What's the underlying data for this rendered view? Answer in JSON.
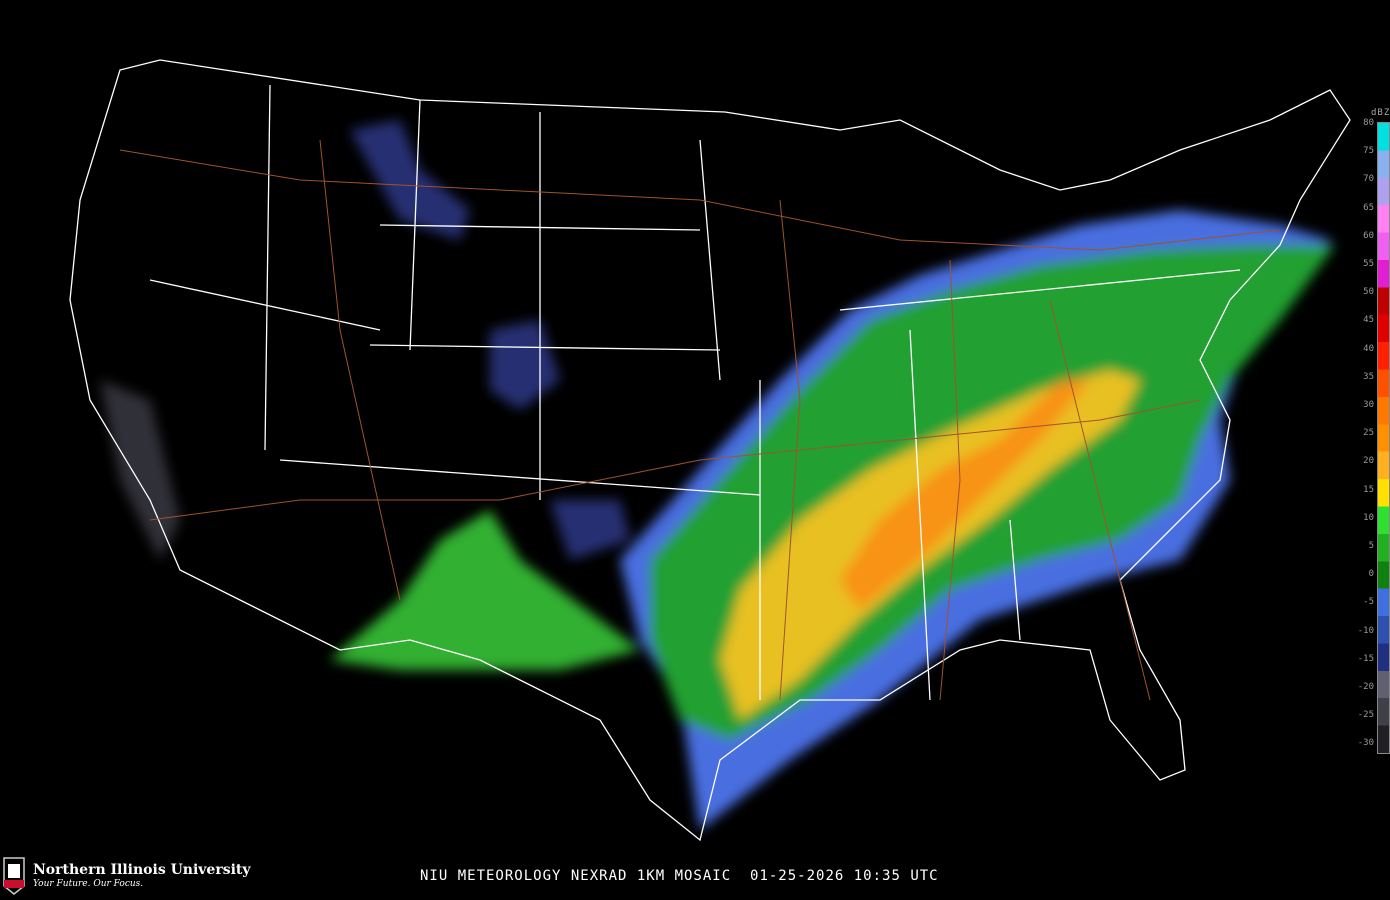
{
  "caption": {
    "source": "NIU METEOROLOGY NEXRAD 1KM MOSAIC",
    "date": "01-25-2026",
    "time": "10:35 UTC"
  },
  "logo": {
    "name": "Northern Illinois University",
    "tagline": "Your Future. Our Focus.",
    "mark": "NIU"
  },
  "legend": {
    "unit": "dBZ",
    "ticks": [
      "80",
      "75",
      "70",
      "65",
      "60",
      "55",
      "50",
      "45",
      "40",
      "35",
      "30",
      "25",
      "20",
      "15",
      "10",
      "5",
      "0",
      "-5",
      "-10",
      "-15",
      "-20",
      "-25",
      "-30"
    ],
    "colors": [
      "#00e0e0",
      "#8ab0f0",
      "#b0a0f0",
      "#ff80f0",
      "#f060f0",
      "#e020d0",
      "#c00000",
      "#e00000",
      "#ff2000",
      "#ff5000",
      "#ff7800",
      "#ff9000",
      "#ffb020",
      "#ffe000",
      "#30e030",
      "#20b020",
      "#108010",
      "#4070e0",
      "#3050b0",
      "#203080",
      "#606070",
      "#404048",
      "#202024"
    ]
  },
  "colors": {
    "background": "#000000",
    "borders": "#ffffff",
    "highways": "#a0522d"
  }
}
